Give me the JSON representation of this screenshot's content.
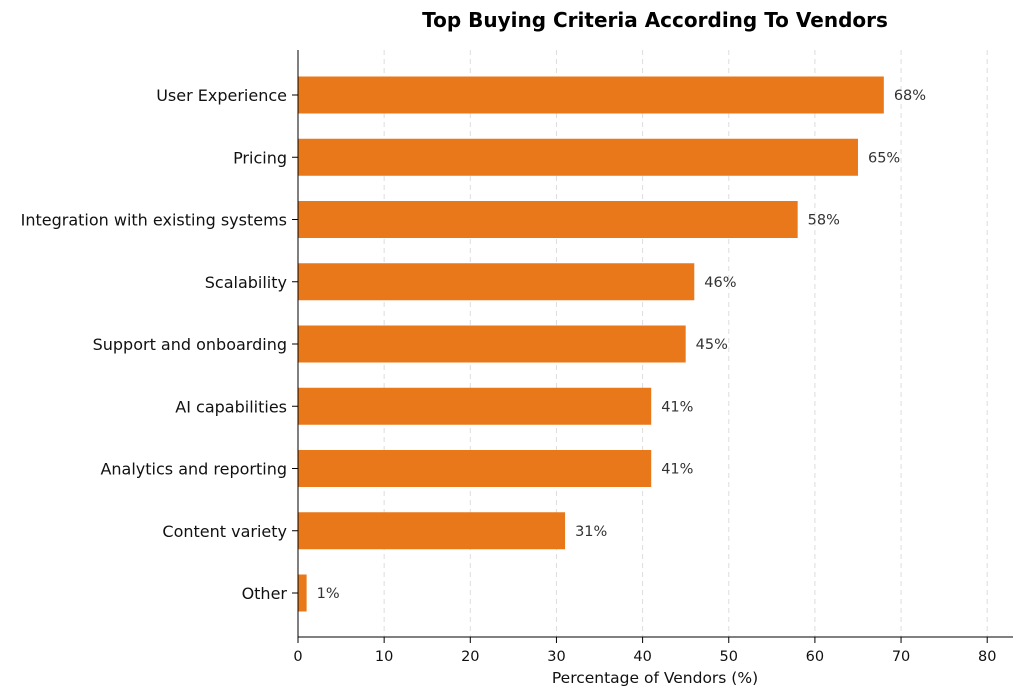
{
  "chart_data": {
    "type": "bar",
    "orientation": "horizontal",
    "title": "Top Buying Criteria According To Vendors",
    "xlabel": "Percentage of Vendors (%)",
    "ylabel": "",
    "xlim": [
      0,
      83
    ],
    "xticks": [
      0,
      10,
      20,
      30,
      40,
      50,
      60,
      70,
      80
    ],
    "grid": "x-dashed",
    "legend": "none",
    "bar_color": "#e8781a",
    "categories": [
      "User Experience",
      "Pricing",
      "Integration with existing systems",
      "Scalability",
      "Support and onboarding",
      "AI capabilities",
      "Analytics and reporting",
      "Content variety",
      "Other"
    ],
    "values": [
      68,
      65,
      58,
      46,
      45,
      41,
      41,
      31,
      1
    ],
    "value_labels": [
      "68%",
      "65%",
      "58%",
      "46%",
      "45%",
      "41%",
      "41%",
      "31%",
      "1%"
    ]
  }
}
